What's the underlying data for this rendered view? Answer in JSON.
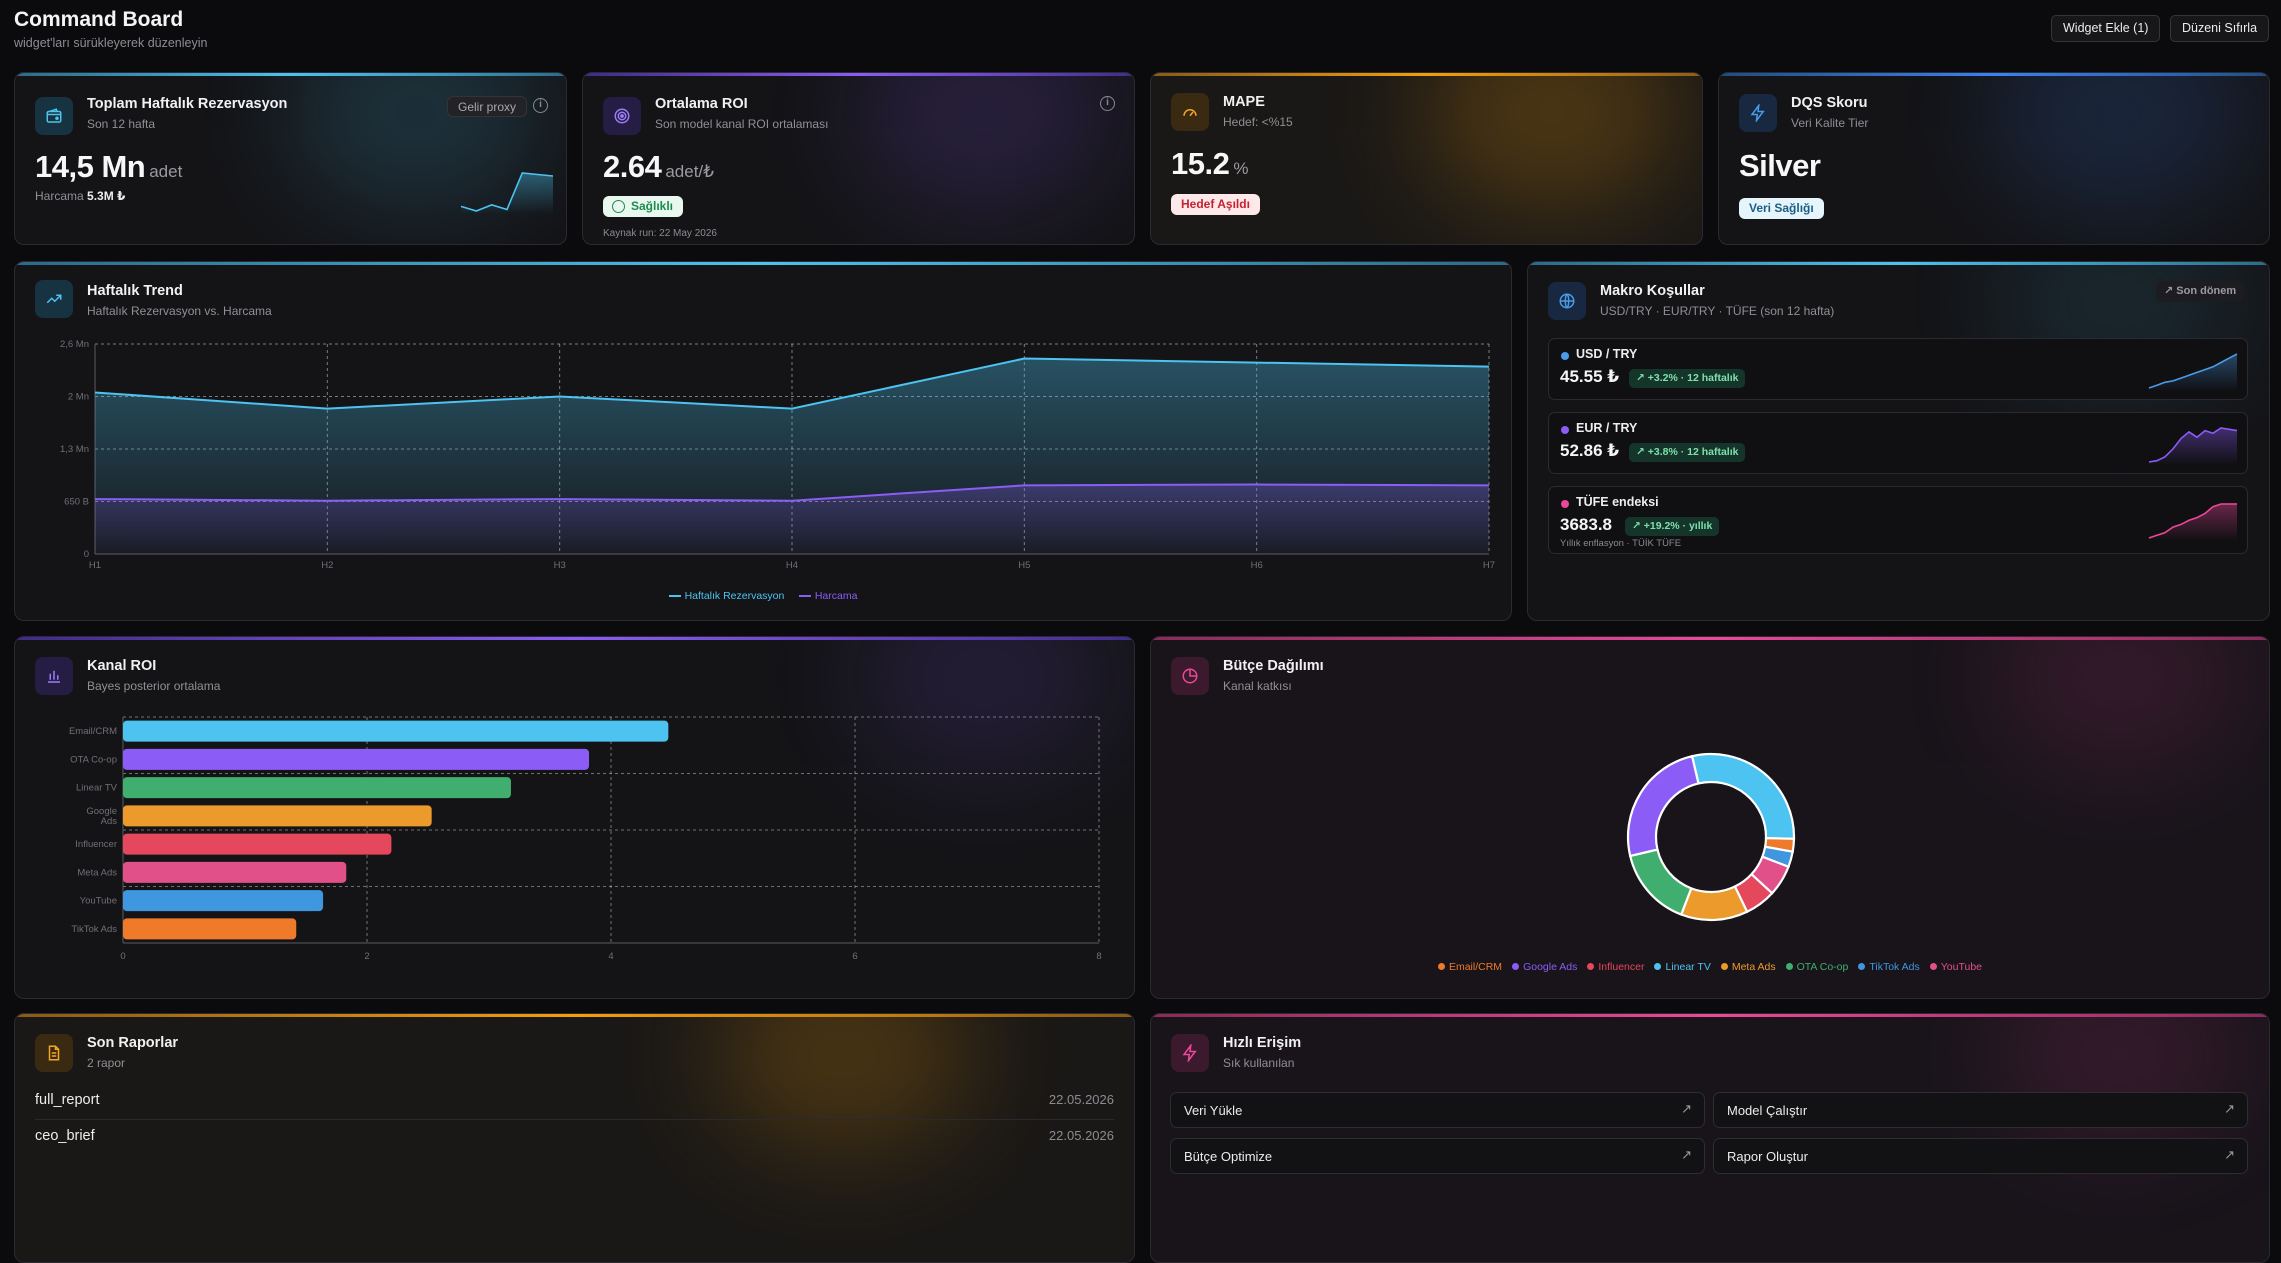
{
  "header": {
    "title": "Command Board",
    "subtitle": "widget'ları sürükleyerek düzenleyin",
    "add_widget": "Widget Ekle (1)",
    "reset_layout": "Düzeni Sıfırla"
  },
  "kpis": {
    "reservations": {
      "title": "Toplam Haftalık Rezervasyon",
      "sub": "Son 12 hafta",
      "badge": "Gelir proxy",
      "value": "14,5 Mn",
      "unit": "adet",
      "spend_label": "Harcama",
      "spend_value": "5.3M ₺",
      "icon": "wallet-icon",
      "accent": "#4cc3f0"
    },
    "roi": {
      "title": "Ortalama ROI",
      "sub": "Son model kanal ROI ortalaması",
      "value": "2.64",
      "unit": "adet/₺",
      "status": "Sağlıklı",
      "footer": "Kaynak run: 22 May 2026",
      "icon": "target-icon",
      "accent": "#8b5cf6"
    },
    "mape": {
      "title": "MAPE",
      "sub": "Hedef: <%15",
      "value": "15.2",
      "unit": "%",
      "status": "Hedef Aşıldı",
      "icon": "gauge-icon",
      "accent": "#f59e0b"
    },
    "dqs": {
      "title": "DQS Skoru",
      "sub": "Veri Kalite Tier",
      "value": "Silver",
      "status": "Veri Sağlığı",
      "icon": "bolt-icon",
      "accent": "#3b82f6"
    }
  },
  "trend": {
    "title": "Haftalık Trend",
    "sub": "Haftalık Rezervasyon vs. Harcama",
    "icon": "trending-up-icon",
    "legend": [
      "Haftalık Rezervasyon",
      "Harcama"
    ]
  },
  "macro": {
    "title": "Makro Koşullar",
    "sub": "USD/TRY · EUR/TRY · TÜFE (son 12 hafta)",
    "badge": "Son dönem",
    "icon": "globe-icon",
    "rows": [
      {
        "label": "USD / TRY",
        "value": "45.55 ₺",
        "change": "+3.2% · 12 haftalık",
        "color": "#4a9ce8",
        "note": ""
      },
      {
        "label": "EUR / TRY",
        "value": "52.86 ₺",
        "change": "+3.8% · 12 haftalık",
        "color": "#8b5cf6",
        "note": ""
      },
      {
        "label": "TÜFE endeksi",
        "value": "3683.8",
        "change": "+19.2% · yıllık",
        "color": "#ec4899",
        "note": "Yıllık enflasyon · TÜİK TÜFE"
      }
    ]
  },
  "roi_chart": {
    "title": "Kanal ROI",
    "sub": "Bayes posterior ortalama",
    "icon": "bar-chart-icon"
  },
  "budget": {
    "title": "Bütçe Dağılımı",
    "sub": "Kanal katkısı",
    "icon": "pie-chart-icon"
  },
  "reports": {
    "title": "Son Raporlar",
    "sub": "2 rapor",
    "icon": "document-icon",
    "items": [
      {
        "name": "full_report",
        "date": "22.05.2026"
      },
      {
        "name": "ceo_brief",
        "date": "22.05.2026"
      }
    ]
  },
  "quick": {
    "title": "Hızlı Erişim",
    "sub": "Sık kullanılan",
    "icon": "bolt-icon",
    "items": [
      "Veri Yükle",
      "Model Çalıştır",
      "Bütçe Optimize",
      "Rapor Oluştur"
    ]
  },
  "chart_data": [
    {
      "type": "line",
      "x": [
        "H1",
        "H2",
        "H3",
        "H4",
        "H5",
        "H6",
        "H7"
      ],
      "y_ticks": [
        "0",
        "650 B",
        "1,3 Mn",
        "2 Mn",
        "2,6 Mn"
      ],
      "ylim": [
        0,
        2600000
      ],
      "series": [
        {
          "name": "Haftalık Rezervasyon",
          "color": "#4cc3f0",
          "values": [
            2000000,
            1800000,
            1950000,
            1800000,
            2420000,
            2370000,
            2320000
          ]
        },
        {
          "name": "Harcama",
          "color": "#8b5cf6",
          "values": [
            680000,
            660000,
            680000,
            660000,
            850000,
            860000,
            850000
          ]
        }
      ],
      "grid": true,
      "legend": "bottom"
    },
    {
      "type": "bar",
      "orientation": "horizontal",
      "categories": [
        "Email/CRM",
        "OTA Co-op",
        "Linear TV",
        "Google Ads",
        "Influencer",
        "Meta Ads",
        "YouTube",
        "TikTok Ads"
      ],
      "values": [
        4.47,
        3.82,
        3.18,
        2.53,
        2.2,
        1.83,
        1.64,
        1.42
      ],
      "colors": [
        "#4cc3f0",
        "#8b5cf6",
        "#3fae6f",
        "#ec9a2c",
        "#e5475c",
        "#e2508a",
        "#3f97e0",
        "#ee7a2a"
      ],
      "x_ticks": [
        "0",
        "2",
        "4",
        "6",
        "8"
      ],
      "xlim": [
        0,
        8
      ],
      "grid": true
    },
    {
      "type": "pie",
      "donut": true,
      "slices": [
        {
          "label": "Linear TV",
          "value": 29,
          "color": "#4cc3f0"
        },
        {
          "label": "Email/CRM",
          "value": 2.5,
          "color": "#ee7a2a"
        },
        {
          "label": "TikTok Ads",
          "value": 3,
          "color": "#3f97e0"
        },
        {
          "label": "YouTube",
          "value": 6,
          "color": "#e2508a"
        },
        {
          "label": "Influencer",
          "value": 6,
          "color": "#e5475c"
        },
        {
          "label": "Meta Ads",
          "value": 13,
          "color": "#ec9a2c"
        },
        {
          "label": "OTA Co-op",
          "value": 15.5,
          "color": "#3fae6f"
        },
        {
          "label": "Google Ads",
          "value": 25,
          "color": "#8b5cf6"
        }
      ],
      "legend_order": [
        "Email/CRM",
        "Google Ads",
        "Influencer",
        "Linear TV",
        "Meta Ads",
        "OTA Co-op",
        "TikTok Ads",
        "YouTube"
      ],
      "legend": "bottom"
    }
  ],
  "sparklines": {
    "reservations": [
      1.5,
      1.35,
      1.55,
      1.4,
      2.6,
      2.55,
      2.5
    ],
    "usd": [
      1,
      1.2,
      1.4,
      1.5,
      1.7,
      1.9,
      2.1,
      2.3,
      2.5,
      2.8,
      3.1,
      3.4
    ],
    "eur": [
      1,
      1.1,
      1.4,
      2.0,
      2.8,
      3.3,
      2.9,
      3.4,
      3.2,
      3.6,
      3.5,
      3.4
    ],
    "cpi": [
      1,
      1.2,
      1.4,
      1.8,
      2.0,
      2.3,
      2.5,
      2.8,
      3.3,
      3.5,
      3.5,
      3.5
    ]
  }
}
